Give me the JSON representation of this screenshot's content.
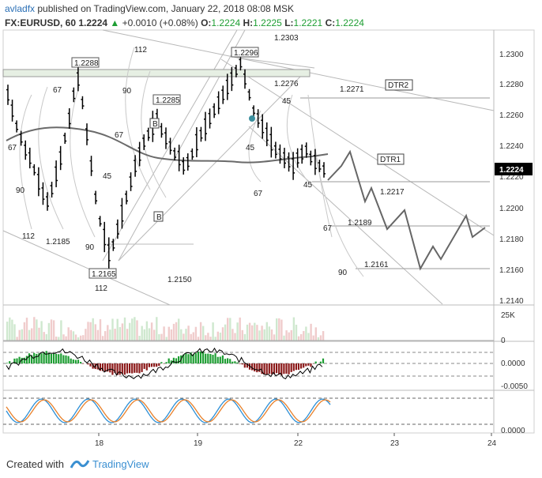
{
  "header": {
    "author": "avladfx",
    "published_text": "published on TradingView.com, January 22, 2018 08:08 MSK",
    "symbol": "FX:EURUSD, 60",
    "last": "1.2224",
    "change": "+0.0010 (+0.08%)",
    "o_label": "O:",
    "o": "1.2224",
    "h_label": "H:",
    "h": "1.2225",
    "l_label": "L:",
    "l": "1.2221",
    "c_label": "C:",
    "c": "1.2224"
  },
  "price_axis": [
    "1.2300",
    "1.2280",
    "1.2260",
    "1.2240",
    "1.2220",
    "1.2200",
    "1.2180",
    "1.2160",
    "1.2140"
  ],
  "current_price": "1.2224",
  "volume_axis": [
    "25K",
    "0"
  ],
  "macd_axis": [
    "0.0000",
    "-0.0050"
  ],
  "stoch_axis": [
    "0.0000"
  ],
  "time_axis": [
    "18",
    "19",
    "22",
    "23",
    "24"
  ],
  "price_labels": [
    "1.2303",
    "1.2296",
    "1.2288",
    "1.2285",
    "1.2276",
    "1.2271",
    "1.2217",
    "1.2189",
    "1.2185",
    "1.2165",
    "1.2161",
    "1.2150"
  ],
  "fib_labels": [
    "112",
    "90",
    "67",
    "45",
    "67",
    "90",
    "112",
    "45",
    "67",
    "90",
    "45",
    "67",
    "45",
    "67",
    "90",
    "112"
  ],
  "trend_labels": [
    "DTR2",
    "DTR1"
  ],
  "marker_labels": [
    "B",
    "B"
  ],
  "footer": {
    "created_with": "Created with",
    "brand": "TradingView"
  },
  "colors": {
    "green": "#1e9e33",
    "red": "#8b1a1a",
    "blue_k": "#2d8fd6",
    "orange_d": "#e8802a",
    "ma": "#555555"
  }
}
